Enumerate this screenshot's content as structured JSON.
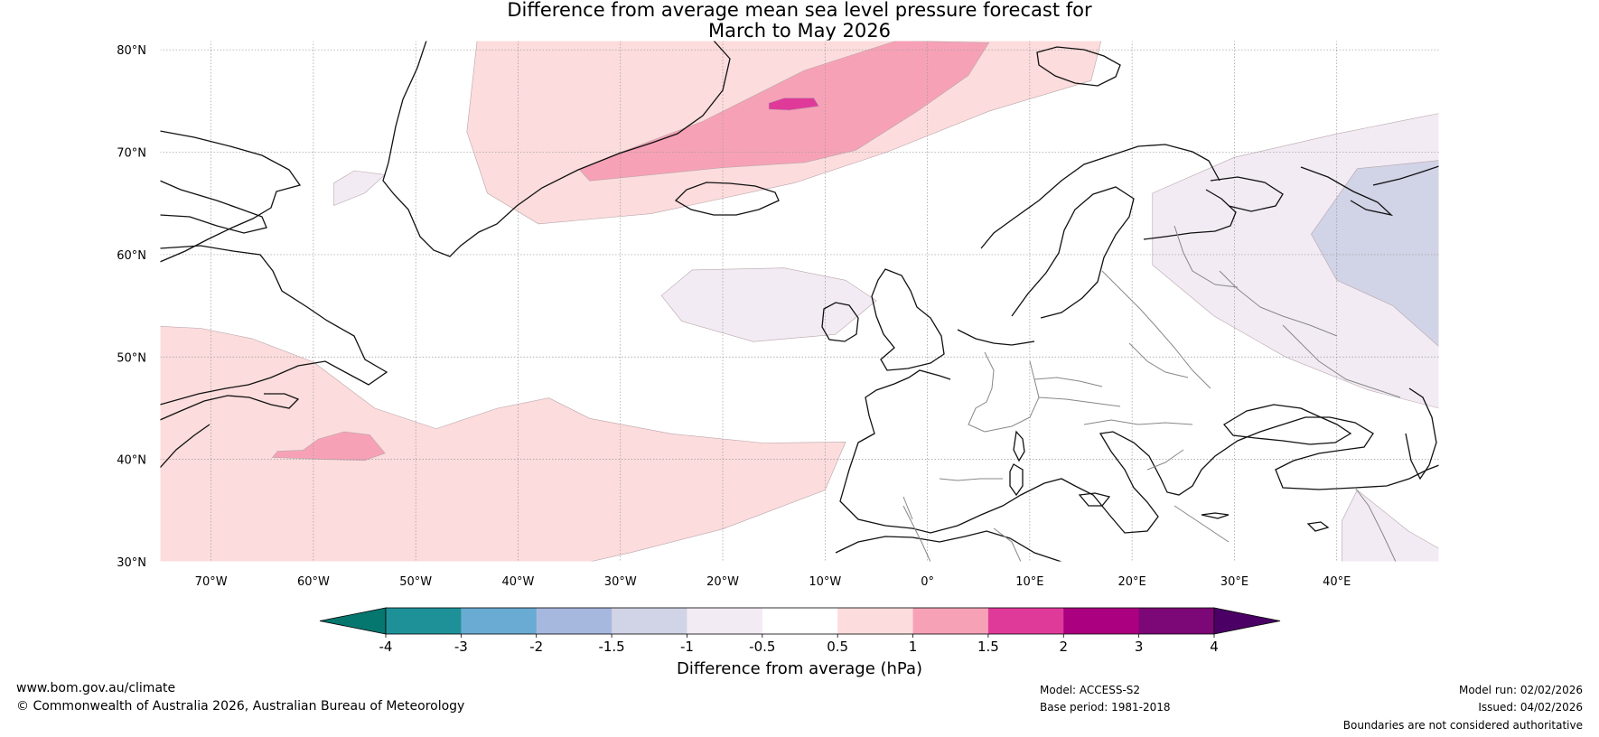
{
  "title": {
    "line1": "Difference from average mean sea level pressure forecast for",
    "line2": "March to May 2026"
  },
  "map": {
    "lon_range": [
      -75,
      50
    ],
    "lat_range": [
      30,
      80.9
    ],
    "lat_ticks": [
      {
        "value": 80,
        "label": "80°N"
      },
      {
        "value": 70,
        "label": "70°N"
      },
      {
        "value": 60,
        "label": "60°N"
      },
      {
        "value": 50,
        "label": "50°N"
      },
      {
        "value": 40,
        "label": "40°N"
      },
      {
        "value": 30,
        "label": "30°N"
      }
    ],
    "lon_ticks": [
      {
        "value": -70,
        "label": "70°W"
      },
      {
        "value": -60,
        "label": "60°W"
      },
      {
        "value": -50,
        "label": "50°W"
      },
      {
        "value": -40,
        "label": "40°W"
      },
      {
        "value": -30,
        "label": "30°W"
      },
      {
        "value": -20,
        "label": "20°W"
      },
      {
        "value": -10,
        "label": "10°W"
      },
      {
        "value": 0,
        "label": "0°"
      },
      {
        "value": 10,
        "label": "10°E"
      },
      {
        "value": 20,
        "label": "20°E"
      },
      {
        "value": 30,
        "label": "30°E"
      },
      {
        "value": 40,
        "label": "40°E"
      }
    ],
    "anomaly_regions": [
      {
        "name": "greenland-sea-positive",
        "class": "0.5-1",
        "color": "#fcdcdc",
        "points": [
          [
            -44,
            81
          ],
          [
            4,
            81
          ],
          [
            17,
            81
          ],
          [
            16,
            77
          ],
          [
            6,
            74
          ],
          [
            -4,
            70
          ],
          [
            -13,
            67
          ],
          [
            -27,
            64
          ],
          [
            -38,
            63
          ],
          [
            -43,
            66
          ],
          [
            -45,
            72
          ]
        ]
      },
      {
        "name": "greenland-sea-core",
        "class": "1-1.5",
        "color": "#f7a1b7",
        "points": [
          [
            -33,
            67.2
          ],
          [
            -20,
            68.5
          ],
          [
            -12,
            69
          ],
          [
            -7,
            70.2
          ],
          [
            -1,
            74
          ],
          [
            4,
            77.5
          ],
          [
            6,
            80.7
          ],
          [
            -3,
            80.9
          ],
          [
            -12,
            78
          ],
          [
            -22,
            73
          ],
          [
            -30,
            70
          ],
          [
            -34,
            68.3
          ]
        ]
      },
      {
        "name": "greenland-sea-peak",
        "class": "1.5-2",
        "color": "#df3a9a",
        "points": [
          [
            -15.5,
            74.2
          ],
          [
            -13.5,
            74.1
          ],
          [
            -10.6,
            74.5
          ],
          [
            -11.1,
            75.3
          ],
          [
            -14,
            75.3
          ],
          [
            -15.5,
            74.8
          ]
        ]
      },
      {
        "name": "north-atlantic-positive",
        "class": "0.5-1",
        "color": "#fcdcdc",
        "points": [
          [
            -75,
            53
          ],
          [
            -71,
            52.8
          ],
          [
            -66,
            51.8
          ],
          [
            -60,
            49.5
          ],
          [
            -54,
            45
          ],
          [
            -48,
            43
          ],
          [
            -42,
            45
          ],
          [
            -37,
            46
          ],
          [
            -33,
            44
          ],
          [
            -25,
            42.5
          ],
          [
            -16,
            41.6
          ],
          [
            -8,
            41.7
          ],
          [
            -10,
            37
          ],
          [
            -20,
            33.2
          ],
          [
            -29,
            30.9
          ],
          [
            -33,
            30
          ],
          [
            -75,
            30
          ]
        ]
      },
      {
        "name": "north-atlantic-core",
        "class": "1-1.5",
        "color": "#f7a1b7",
        "points": [
          [
            -64,
            40.2
          ],
          [
            -59,
            40
          ],
          [
            -55,
            39.9
          ],
          [
            -53,
            40.6
          ],
          [
            -54.5,
            42.4
          ],
          [
            -57,
            42.7
          ],
          [
            -59.5,
            42
          ],
          [
            -61,
            40.9
          ],
          [
            -63.5,
            40.8
          ]
        ]
      },
      {
        "name": "iceland-south-negative",
        "class": "-1--0.5",
        "color": "#f2ebf4",
        "points": [
          [
            -26,
            56
          ],
          [
            -23,
            58.5
          ],
          [
            -14,
            58.7
          ],
          [
            -8,
            57.5
          ],
          [
            -5,
            55.5
          ],
          [
            -9,
            52.2
          ],
          [
            -17,
            51.5
          ],
          [
            -24,
            53.5
          ]
        ]
      },
      {
        "name": "davis-strait-negative",
        "class": "-1--0.5",
        "color": "#f2ebf4",
        "points": [
          [
            -58,
            64.8
          ],
          [
            -55,
            66
          ],
          [
            -53,
            67.8
          ],
          [
            -56,
            68.2
          ],
          [
            -58,
            67
          ]
        ]
      },
      {
        "name": "eastern-europe-negative",
        "class": "-1--0.5",
        "color": "#f2ebf4",
        "points": [
          [
            22,
            66
          ],
          [
            30,
            69.5
          ],
          [
            40,
            71.8
          ],
          [
            50,
            73.8
          ],
          [
            50,
            45
          ],
          [
            43,
            46.8
          ],
          [
            35,
            50
          ],
          [
            28,
            54
          ],
          [
            22,
            59
          ]
        ]
      },
      {
        "name": "russia-core-negative",
        "class": "-1.5--1",
        "color": "#d1d3e6",
        "points": [
          [
            37.5,
            62
          ],
          [
            42,
            68.4
          ],
          [
            50,
            69.2
          ],
          [
            50,
            51
          ],
          [
            45.5,
            55
          ],
          [
            40,
            57.5
          ]
        ]
      },
      {
        "name": "middle-east-negative",
        "class": "-1--0.5",
        "color": "#f2ebf4",
        "points": [
          [
            42,
            37
          ],
          [
            47,
            33
          ],
          [
            50,
            31.3
          ],
          [
            50,
            30
          ],
          [
            40.5,
            30
          ],
          [
            40.5,
            34
          ]
        ]
      }
    ]
  },
  "colorbar": {
    "title": "Difference from average (hPa)",
    "levels": [
      "-4",
      "-3",
      "-2",
      "-1.5",
      "-1",
      "-0.5",
      "0.5",
      "1",
      "1.5",
      "2",
      "3",
      "4"
    ],
    "colors": [
      "#1e9198",
      "#69abd2",
      "#a7b8de",
      "#d1d3e6",
      "#f2ebf4",
      "#ffffff",
      "#fcdcdc",
      "#f7a1b7",
      "#df3a9a",
      "#ab007f",
      "#7c0776"
    ],
    "under_color": "#05776f",
    "over_color": "#4a0064"
  },
  "footer": {
    "website": "www.bom.gov.au/climate",
    "copyright": "© Commonwealth of Australia 2026, Australian Bureau of Meteorology",
    "model": "Model: ACCESS-S2",
    "base_period": "Base period: 1981-2018",
    "model_run": "Model run: 02/02/2026",
    "issued": "Issued: 04/02/2026",
    "disclaimer": "Boundaries are not considered authoritative"
  }
}
